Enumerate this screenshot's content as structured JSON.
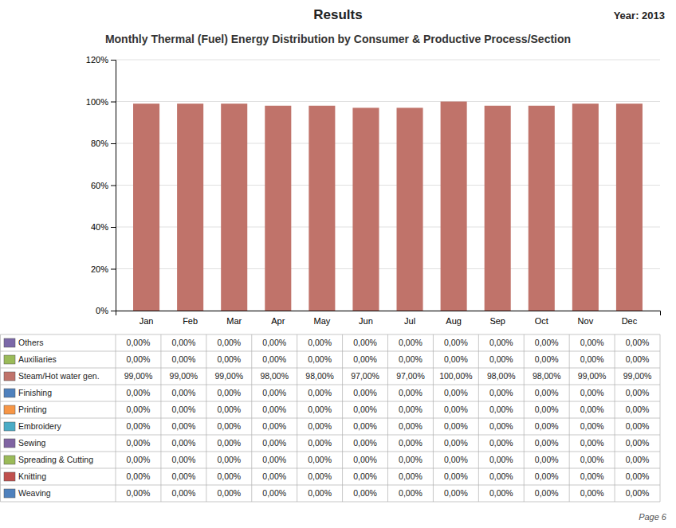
{
  "chart_data": {
    "type": "bar",
    "stacked": true,
    "title": "Monthly Thermal (Fuel) Energy Distribution by Consumer & Productive Process/Section",
    "annotations": [
      "Results",
      "Year: 2013",
      "Page 6"
    ],
    "categories": [
      "Jan",
      "Feb",
      "Mar",
      "Apr",
      "May",
      "Jun",
      "Jul",
      "Aug",
      "Sep",
      "Oct",
      "Nov",
      "Dec"
    ],
    "series": [
      {
        "name": "Others",
        "color": "#7B68A8",
        "values": [
          0,
          0,
          0,
          0,
          0,
          0,
          0,
          0,
          0,
          0,
          0,
          0
        ],
        "value_labels": [
          "0,00%",
          "0,00%",
          "0,00%",
          "0,00%",
          "0,00%",
          "0,00%",
          "0,00%",
          "0,00%",
          "0,00%",
          "0,00%",
          "0,00%",
          "0,00%"
        ]
      },
      {
        "name": "Auxiliaries",
        "color": "#9BBB59",
        "values": [
          0,
          0,
          0,
          0,
          0,
          0,
          0,
          0,
          0,
          0,
          0,
          0
        ],
        "value_labels": [
          "0,00%",
          "0,00%",
          "0,00%",
          "0,00%",
          "0,00%",
          "0,00%",
          "0,00%",
          "0,00%",
          "0,00%",
          "0,00%",
          "0,00%",
          "0,00%"
        ]
      },
      {
        "name": "Steam/Hot water gen.",
        "color": "#C0736A",
        "values": [
          99,
          99,
          99,
          98,
          98,
          97,
          97,
          100,
          98,
          98,
          99,
          99
        ],
        "value_labels": [
          "99,00%",
          "99,00%",
          "99,00%",
          "98,00%",
          "98,00%",
          "97,00%",
          "97,00%",
          "100,00%",
          "98,00%",
          "98,00%",
          "99,00%",
          "99,00%"
        ]
      },
      {
        "name": "Finishing",
        "color": "#4F81BD",
        "values": [
          0,
          0,
          0,
          0,
          0,
          0,
          0,
          0,
          0,
          0,
          0,
          0
        ],
        "value_labels": [
          "0,00%",
          "0,00%",
          "0,00%",
          "0,00%",
          "0,00%",
          "0,00%",
          "0,00%",
          "0,00%",
          "0,00%",
          "0,00%",
          "0,00%",
          "0,00%"
        ]
      },
      {
        "name": "Printing",
        "color": "#F79646",
        "values": [
          0,
          0,
          0,
          0,
          0,
          0,
          0,
          0,
          0,
          0,
          0,
          0
        ],
        "value_labels": [
          "0,00%",
          "0,00%",
          "0,00%",
          "0,00%",
          "0,00%",
          "0,00%",
          "0,00%",
          "0,00%",
          "0,00%",
          "0,00%",
          "0,00%",
          "0,00%"
        ]
      },
      {
        "name": "Embroidery",
        "color": "#4BACC6",
        "values": [
          0,
          0,
          0,
          0,
          0,
          0,
          0,
          0,
          0,
          0,
          0,
          0
        ],
        "value_labels": [
          "0,00%",
          "0,00%",
          "0,00%",
          "0,00%",
          "0,00%",
          "0,00%",
          "0,00%",
          "0,00%",
          "0,00%",
          "0,00%",
          "0,00%",
          "0,00%"
        ]
      },
      {
        "name": "Sewing",
        "color": "#8064A2",
        "values": [
          0,
          0,
          0,
          0,
          0,
          0,
          0,
          0,
          0,
          0,
          0,
          0
        ],
        "value_labels": [
          "0,00%",
          "0,00%",
          "0,00%",
          "0,00%",
          "0,00%",
          "0,00%",
          "0,00%",
          "0,00%",
          "0,00%",
          "0,00%",
          "0,00%",
          "0,00%"
        ]
      },
      {
        "name": "Spreading & Cutting",
        "color": "#9BBB59",
        "values": [
          0,
          0,
          0,
          0,
          0,
          0,
          0,
          0,
          0,
          0,
          0,
          0
        ],
        "value_labels": [
          "0,00%",
          "0,00%",
          "0,00%",
          "0,00%",
          "0,00%",
          "0,00%",
          "0,00%",
          "0,00%",
          "0,00%",
          "0,00%",
          "0,00%",
          "0,00%"
        ]
      },
      {
        "name": "Knitting",
        "color": "#C0504D",
        "values": [
          0,
          0,
          0,
          0,
          0,
          0,
          0,
          0,
          0,
          0,
          0,
          0
        ],
        "value_labels": [
          "0,00%",
          "0,00%",
          "0,00%",
          "0,00%",
          "0,00%",
          "0,00%",
          "0,00%",
          "0,00%",
          "0,00%",
          "0,00%",
          "0,00%",
          "0,00%"
        ]
      },
      {
        "name": "Weaving",
        "color": "#4F81BD",
        "values": [
          0,
          0,
          0,
          0,
          0,
          0,
          0,
          0,
          0,
          0,
          0,
          0
        ],
        "value_labels": [
          "0,00%",
          "0,00%",
          "0,00%",
          "0,00%",
          "0,00%",
          "0,00%",
          "0,00%",
          "0,00%",
          "0,00%",
          "0,00%",
          "0,00%",
          "0,00%"
        ]
      }
    ],
    "ylim": [
      0,
      120
    ],
    "yticks": [
      {
        "value": 0,
        "label": "0%"
      },
      {
        "value": 20,
        "label": "20%"
      },
      {
        "value": 40,
        "label": "40%"
      },
      {
        "value": 60,
        "label": "60%"
      },
      {
        "value": 80,
        "label": "80%"
      },
      {
        "value": 100,
        "label": "100%"
      },
      {
        "value": 120,
        "label": "120%"
      }
    ],
    "grid": true,
    "legend": "bottom"
  }
}
